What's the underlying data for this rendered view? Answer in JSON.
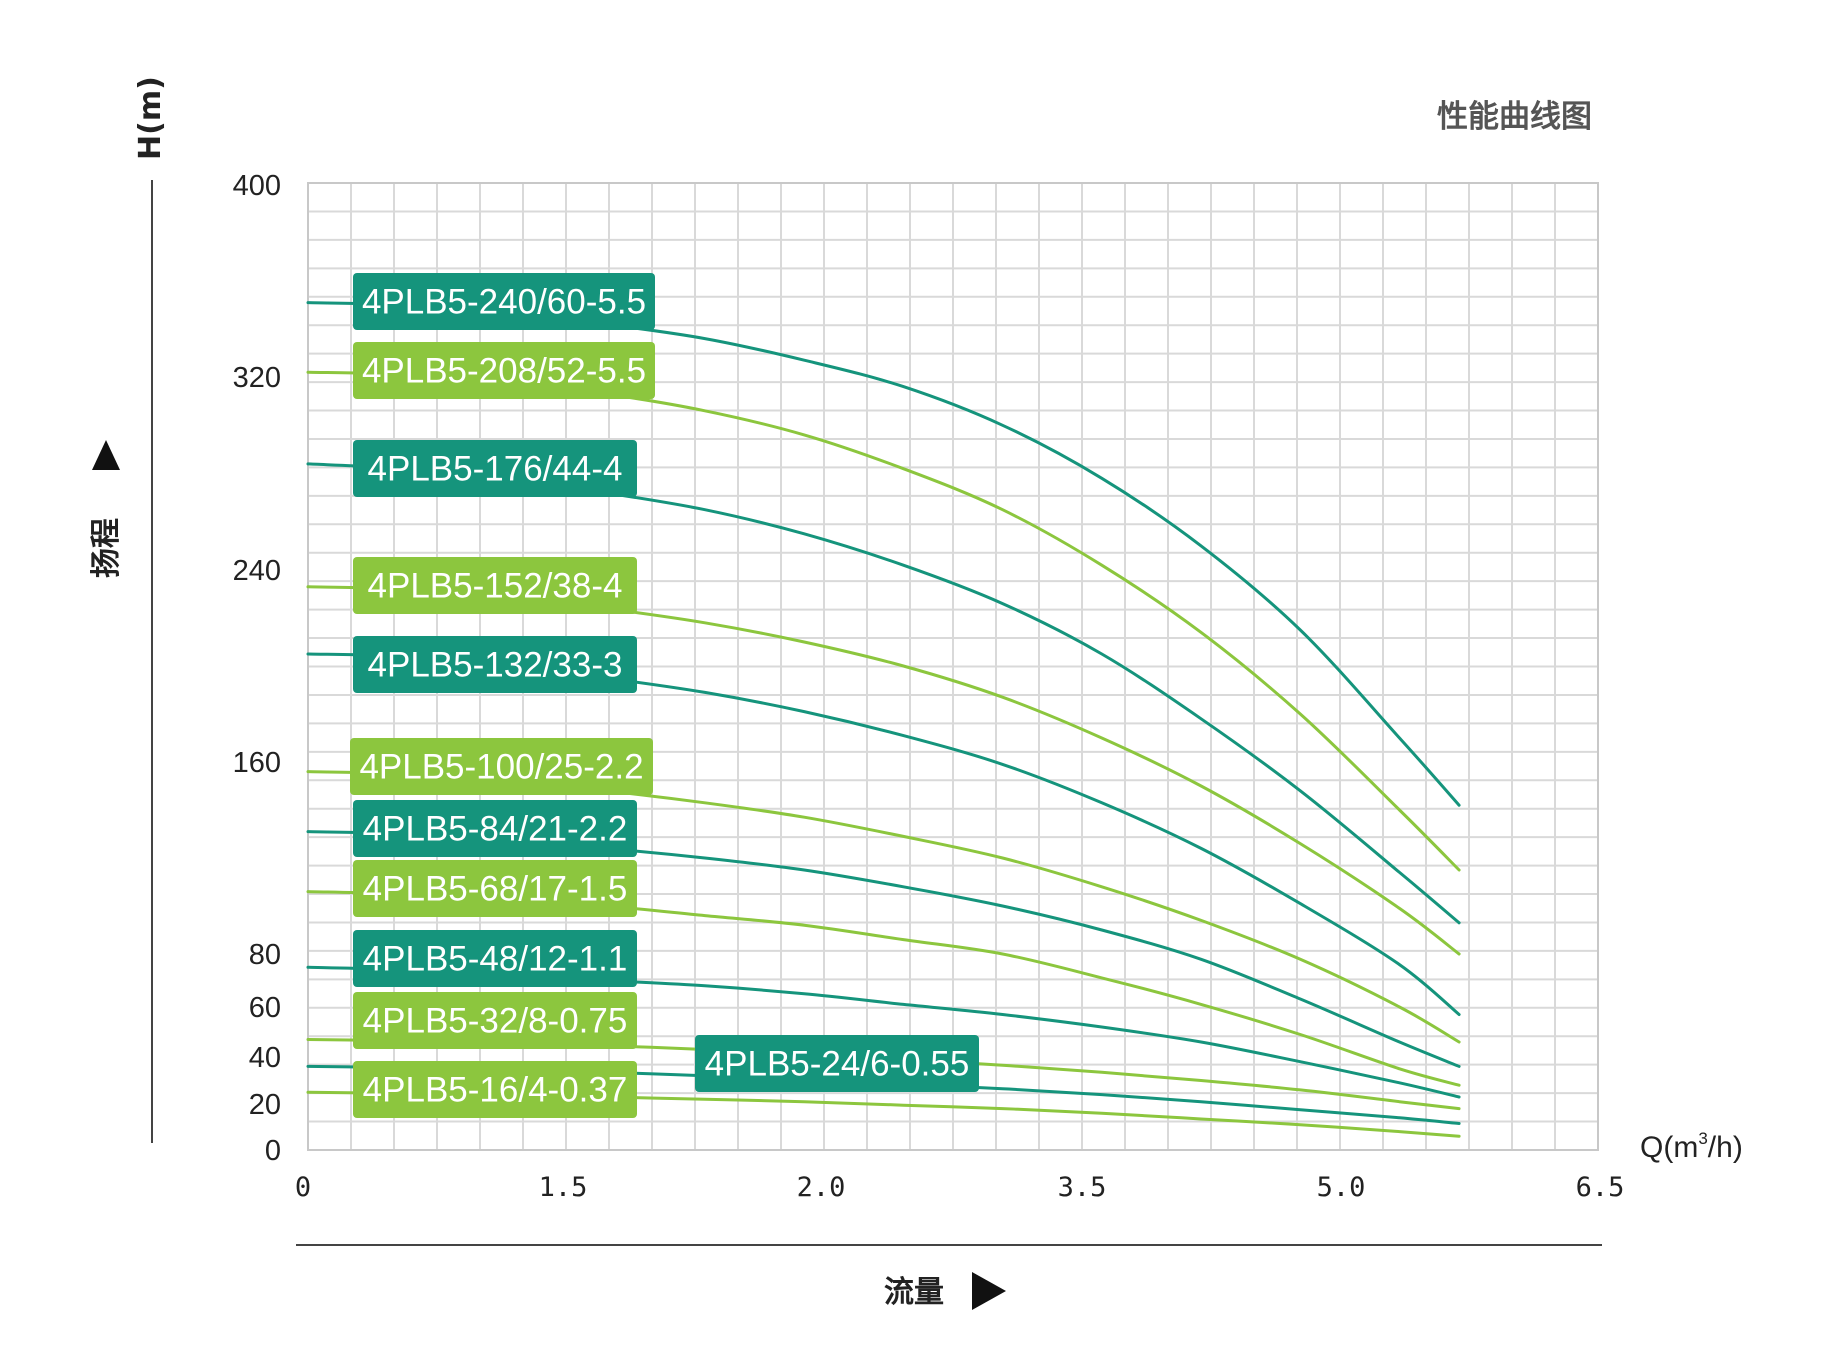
{
  "chart_data": {
    "type": "line",
    "title": "性能曲线图",
    "ylabel_unit": "H(m)",
    "ylabel": "扬程",
    "xlabel": "流量",
    "xlabel_unit_main": "Q(m",
    "xlabel_unit_sup": "3",
    "xlabel_unit_tail": "/h)",
    "y_ticks": [
      0,
      20,
      40,
      60,
      80,
      160,
      240,
      320,
      400
    ],
    "x_ticks": [
      "0",
      "1.5",
      "2.0",
      "3.5",
      "5.0",
      "6.5"
    ],
    "ylim": [
      0,
      400
    ],
    "xlim": [
      0,
      6.5
    ],
    "grid": true,
    "colors": {
      "teal": "#15947c",
      "lime": "#8cc63e",
      "grid": "#d9d9d9",
      "axis": "#444444"
    },
    "series": [
      {
        "name": "4PLB5-240/60-5.5",
        "color": "teal",
        "x": [
          0,
          0.5,
          1.0,
          1.5,
          2.0,
          2.5,
          3.0,
          3.5,
          4.0,
          4.5,
          5.0,
          5.5,
          5.8
        ],
        "y": [
          351,
          350,
          347,
          342,
          336,
          327,
          316,
          300,
          278,
          250,
          215,
          170,
          142
        ]
      },
      {
        "name": "4PLB5-208/52-5.5",
        "color": "lime",
        "x": [
          0,
          0.5,
          1.0,
          1.5,
          2.0,
          2.5,
          3.0,
          3.5,
          4.0,
          4.5,
          5.0,
          5.5,
          5.8
        ],
        "y": [
          322,
          321,
          318,
          313,
          306,
          296,
          282,
          265,
          242,
          214,
          180,
          140,
          115
        ]
      },
      {
        "name": "4PLB5-176/44-4",
        "color": "teal",
        "x": [
          0,
          0.5,
          1.0,
          1.5,
          2.0,
          2.5,
          3.0,
          3.5,
          4.0,
          4.5,
          5.0,
          5.5,
          5.8
        ],
        "y": [
          284,
          282,
          278,
          272,
          265,
          255,
          242,
          226,
          205,
          178,
          148,
          114,
          93
        ]
      },
      {
        "name": "4PLB5-152/38-4",
        "color": "lime",
        "x": [
          0,
          0.5,
          1.0,
          1.5,
          2.0,
          2.5,
          3.0,
          3.5,
          4.0,
          4.5,
          5.0,
          5.5,
          5.8
        ],
        "y": [
          233,
          232,
          229,
          224,
          218,
          210,
          200,
          187,
          170,
          150,
          126,
          99,
          80
        ]
      },
      {
        "name": "4PLB5-132/33-3",
        "color": "teal",
        "x": [
          0,
          0.5,
          1.0,
          1.5,
          2.0,
          2.5,
          3.0,
          3.5,
          4.0,
          4.5,
          5.0,
          5.5,
          5.8
        ],
        "y": [
          205,
          204,
          200,
          195,
          189,
          181,
          171,
          159,
          143,
          124,
          101,
          76,
          57
        ]
      },
      {
        "name": "4PLB5-100/25-2.2",
        "color": "lime",
        "x": [
          0,
          0.5,
          1.0,
          1.5,
          2.0,
          2.5,
          3.0,
          3.5,
          4.0,
          4.5,
          5.0,
          5.5,
          5.8
        ],
        "y": [
          156,
          155,
          152,
          148,
          143,
          137,
          129,
          120,
          108,
          94,
          78,
          60,
          46
        ]
      },
      {
        "name": "4PLB5-84/21-2.2",
        "color": "teal",
        "x": [
          0,
          0.5,
          1.0,
          1.5,
          2.0,
          2.5,
          3.0,
          3.5,
          4.0,
          4.5,
          5.0,
          5.5,
          5.8
        ],
        "y": [
          131,
          130,
          127,
          124,
          120,
          115,
          108,
          100,
          90,
          78,
          63,
          46,
          36
        ]
      },
      {
        "name": "4PLB5-68/17-1.5",
        "color": "lime",
        "x": [
          0,
          0.5,
          1.0,
          1.5,
          2.0,
          2.5,
          3.0,
          3.5,
          4.0,
          4.5,
          5.0,
          5.5,
          5.8
        ],
        "y": [
          106,
          105,
          103,
          100,
          96,
          92,
          86,
          80,
          71,
          61,
          49,
          35,
          28
        ]
      },
      {
        "name": "4PLB5-48/12-1.1",
        "color": "teal",
        "x": [
          0,
          0.5,
          1.0,
          1.5,
          2.0,
          2.5,
          3.0,
          3.5,
          4.0,
          4.5,
          5.0,
          5.5,
          5.8
        ],
        "y": [
          75,
          74,
          72,
          70,
          68,
          65,
          61,
          57,
          52,
          46,
          38,
          29,
          23
        ]
      },
      {
        "name": "4PLB5-32/8-0.75",
        "color": "lime",
        "x": [
          0,
          0.5,
          1.0,
          1.5,
          2.0,
          2.5,
          3.0,
          3.5,
          4.0,
          4.5,
          5.0,
          5.5,
          5.8
        ],
        "y": [
          47,
          46.5,
          45.5,
          44.5,
          43,
          41,
          39,
          36.5,
          33.5,
          30,
          26,
          21,
          18
        ]
      },
      {
        "name": "4PLB5-24/6-0.55",
        "color": "teal",
        "x": [
          0,
          0.5,
          1.0,
          1.5,
          2.0,
          2.5,
          3.0,
          3.5,
          4.0,
          4.5,
          5.0,
          5.5,
          5.8
        ],
        "y": [
          36,
          35.5,
          34.5,
          33.5,
          32,
          30.5,
          28.5,
          26.5,
          24,
          21,
          17.5,
          14,
          11.5
        ]
      },
      {
        "name": "4PLB5-16/4-0.37",
        "color": "lime",
        "x": [
          0,
          0.5,
          1.0,
          1.5,
          2.0,
          2.5,
          3.0,
          3.5,
          4.0,
          4.5,
          5.0,
          5.5,
          5.8
        ],
        "y": [
          25,
          24.5,
          24,
          23,
          22,
          21,
          19.5,
          18,
          16,
          13.5,
          11,
          8,
          6
        ]
      }
    ]
  }
}
